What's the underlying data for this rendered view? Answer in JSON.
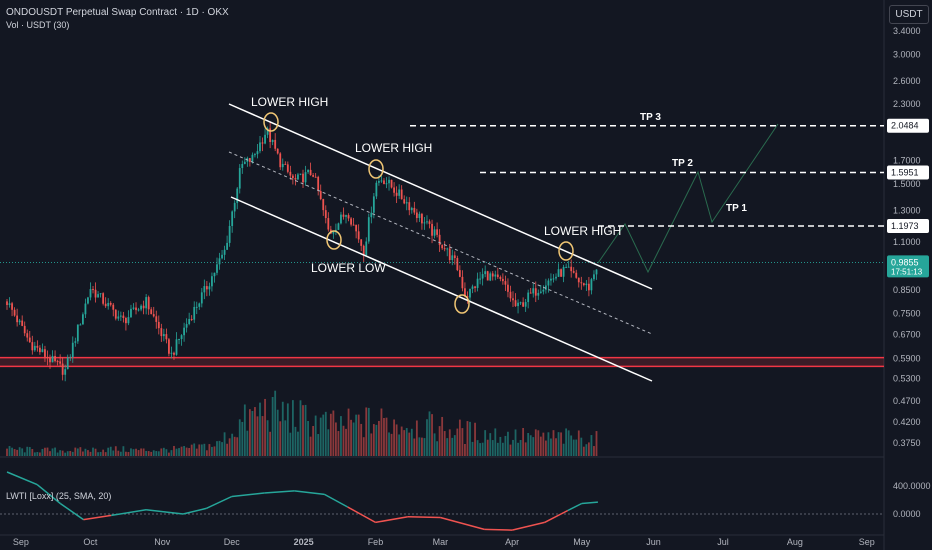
{
  "header": {
    "title": "ONDOUSDT Perpetual Swap Contract · 1D · OKX",
    "volume_label": "Vol · USDT (30)"
  },
  "price_scale_unit": "USDT",
  "colors": {
    "background": "#131722",
    "up": "#26a69a",
    "down": "#ef5350",
    "support_zone": "#f23645",
    "annotation": "#ffffff",
    "lwti_up": "#26a69a",
    "lwti_down": "#ef5350"
  },
  "chart_data": [
    {
      "type": "candlestick",
      "y_scale": "log",
      "price_ticks": [
        "3.4000",
        "3.0000",
        "2.6000",
        "2.3000",
        "1.7000",
        "1.5000",
        "1.3000",
        "1.1000",
        "0.8500",
        "0.7500",
        "0.6700",
        "0.5900",
        "0.5300",
        "0.4700",
        "0.4200",
        "0.3750"
      ],
      "x_ticks": [
        "Sep",
        "Oct",
        "Nov",
        "Dec",
        "2025",
        "Feb",
        "Mar",
        "Apr",
        "May",
        "Jun",
        "Jul",
        "Aug",
        "Sep"
      ],
      "price_badges": [
        {
          "label": "2.0484",
          "value": 2.0484
        },
        {
          "label": "1.5951",
          "value": 1.5951
        },
        {
          "label": "1.1973",
          "value": 1.1973
        }
      ],
      "last_price": {
        "price": "0.9855",
        "countdown": "17:51:13",
        "value": 0.9855
      },
      "annotations": [
        "LOWER HIGH",
        "LOWER HIGH",
        "LOWER HIGH",
        "LOWER LOW"
      ],
      "targets": [
        "TP 3",
        "TP 2",
        "TP 1"
      ],
      "support_zone": [
        0.565,
        0.592
      ],
      "series": [
        {
          "kind": "close_path",
          "x": [
            "2024-08-26",
            "2024-09-05",
            "2024-09-20",
            "2024-10-01",
            "2024-10-15",
            "2024-10-25",
            "2024-11-05",
            "2024-11-12",
            "2024-11-20",
            "2024-11-28",
            "2024-12-05",
            "2024-12-10",
            "2024-12-16",
            "2024-12-22",
            "2024-12-28",
            "2025-01-05",
            "2025-01-12",
            "2025-01-20",
            "2025-01-27",
            "2025-02-01",
            "2025-02-04",
            "2025-02-15",
            "2025-02-28",
            "2025-03-08",
            "2025-03-12",
            "2025-03-20",
            "2025-03-28",
            "2025-04-03",
            "2025-04-08",
            "2025-04-15",
            "2025-04-24",
            "2025-05-01",
            "2025-05-04",
            "2025-05-08"
          ],
          "y": [
            0.8,
            0.64,
            0.55,
            0.86,
            0.72,
            0.8,
            0.6,
            0.72,
            0.86,
            1.05,
            1.65,
            1.72,
            2.0,
            1.68,
            1.52,
            1.6,
            1.15,
            1.3,
            1.05,
            1.5,
            1.55,
            1.35,
            1.12,
            0.97,
            0.82,
            0.93,
            0.88,
            0.77,
            0.82,
            0.88,
            0.95,
            0.88,
            0.86,
            0.9855
          ]
        },
        {
          "kind": "volume",
          "x": [
            "2024-08-26",
            "2024-09-10",
            "2024-09-25",
            "2024-10-10",
            "2024-10-25",
            "2024-11-10",
            "2024-11-25",
            "2024-12-05",
            "2024-12-15",
            "2025-01-01",
            "2025-01-15",
            "2025-02-01",
            "2025-02-15",
            "2025-03-01",
            "2025-03-15",
            "2025-04-01",
            "2025-04-15",
            "2025-05-01",
            "2025-05-08"
          ],
          "y": [
            0.06,
            0.05,
            0.05,
            0.06,
            0.05,
            0.06,
            0.1,
            0.28,
            0.4,
            0.32,
            0.26,
            0.3,
            0.28,
            0.24,
            0.2,
            0.17,
            0.16,
            0.16,
            0.15
          ],
          "sma": [
            0.07,
            0.06,
            0.05,
            0.05,
            0.05,
            0.06,
            0.08,
            0.16,
            0.28,
            0.34,
            0.3,
            0.29,
            0.28,
            0.26,
            0.23,
            0.2,
            0.18,
            0.17,
            0.17
          ]
        }
      ]
    },
    {
      "type": "line",
      "title": "LWTI [Loxx] (25, SMA, 20)",
      "y_ticks": [
        "400.0000",
        "0.0000"
      ],
      "series": [
        {
          "x": [
            "2024-08-26",
            "2024-09-08",
            "2024-09-18",
            "2024-09-28",
            "2024-10-10",
            "2024-10-25",
            "2024-11-10",
            "2024-11-20",
            "2024-12-01",
            "2024-12-15",
            "2024-12-28",
            "2025-01-10",
            "2025-01-20",
            "2025-02-01",
            "2025-02-15",
            "2025-03-01",
            "2025-03-20",
            "2025-04-01",
            "2025-04-15",
            "2025-04-25",
            "2025-05-01",
            "2025-05-08"
          ],
          "y": [
            600,
            420,
            150,
            -80,
            -20,
            60,
            0,
            80,
            250,
            300,
            330,
            280,
            100,
            -120,
            -40,
            -50,
            -220,
            -230,
            -120,
            50,
            150,
            170
          ]
        }
      ]
    }
  ]
}
